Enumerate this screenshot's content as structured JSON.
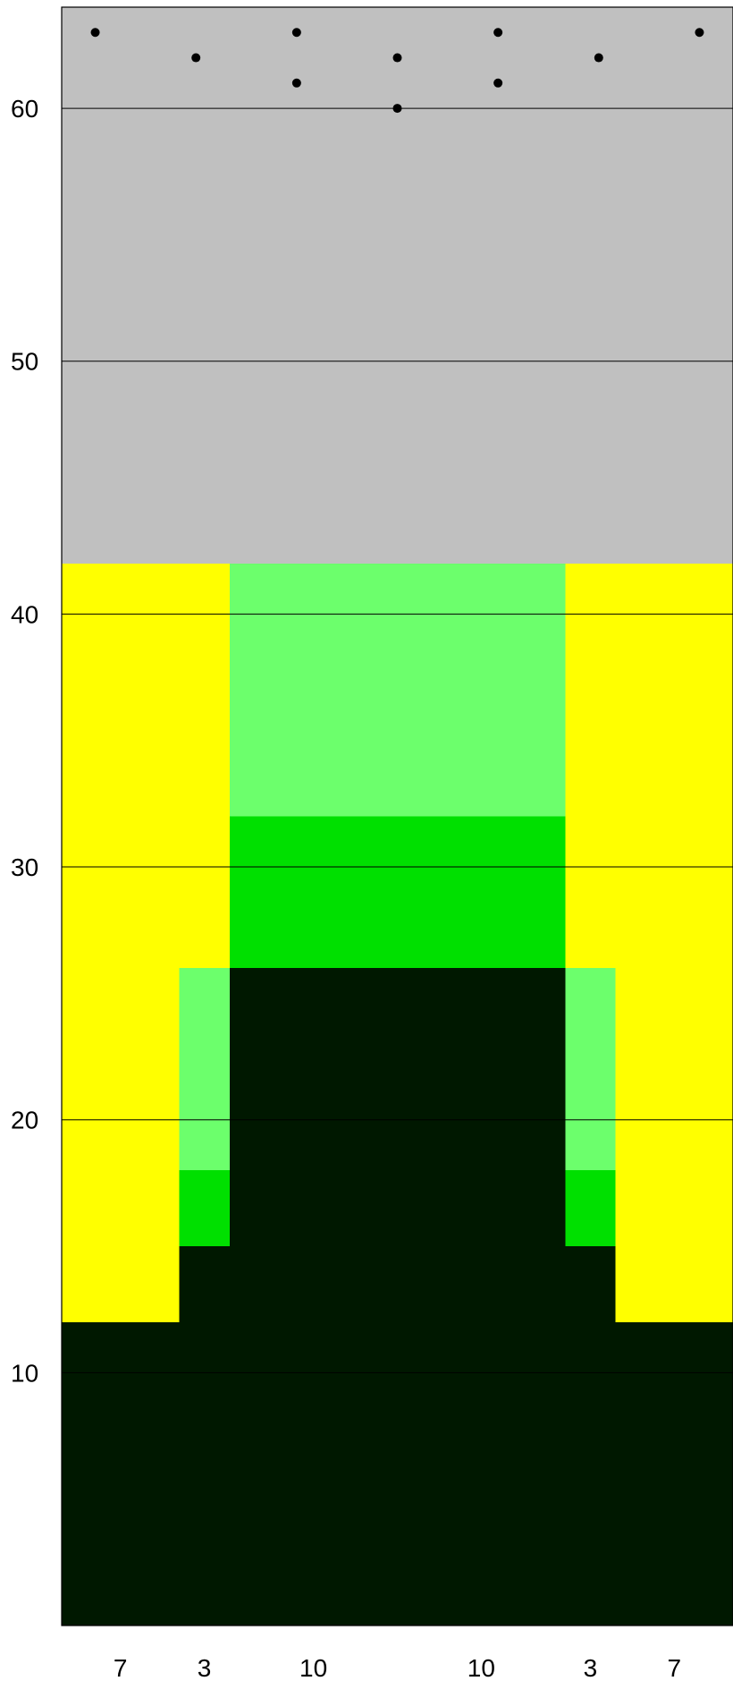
{
  "chart_data": {
    "type": "heatmap",
    "title": "",
    "xlabel": "",
    "ylabel": "",
    "ylim": [
      0,
      64
    ],
    "yticks": [
      10,
      20,
      30,
      40,
      50,
      60
    ],
    "grid": true,
    "column_widths": [
      7,
      3,
      10,
      10,
      3,
      7
    ],
    "xtick_labels": [
      "7",
      "3",
      "10",
      "10",
      "3",
      "7"
    ],
    "colors": {
      "air": "#c0c0c0",
      "sand": "#ffff00",
      "light_green": "#6cff6c",
      "green": "#00e000",
      "dark": "#001800",
      "grid": "#000000"
    },
    "regions": [
      {
        "x0": 0,
        "x1": 40,
        "y0": 42,
        "y1": 64,
        "fill": "air"
      },
      {
        "x0": 0,
        "x1": 40,
        "y0": 0,
        "y1": 12,
        "fill": "dark"
      },
      {
        "x0": 0,
        "x1": 7,
        "y0": 12,
        "y1": 42,
        "fill": "sand"
      },
      {
        "x0": 33,
        "x1": 40,
        "y0": 12,
        "y1": 42,
        "fill": "sand"
      },
      {
        "x0": 7,
        "x1": 10,
        "y0": 26,
        "y1": 42,
        "fill": "sand"
      },
      {
        "x0": 30,
        "x1": 33,
        "y0": 26,
        "y1": 42,
        "fill": "sand"
      },
      {
        "x0": 7,
        "x1": 10,
        "y0": 12,
        "y1": 15,
        "fill": "dark"
      },
      {
        "x0": 30,
        "x1": 33,
        "y0": 12,
        "y1": 15,
        "fill": "dark"
      },
      {
        "x0": 7,
        "x1": 10,
        "y0": 15,
        "y1": 18,
        "fill": "green"
      },
      {
        "x0": 30,
        "x1": 33,
        "y0": 15,
        "y1": 18,
        "fill": "green"
      },
      {
        "x0": 7,
        "x1": 10,
        "y0": 18,
        "y1": 26,
        "fill": "light_green"
      },
      {
        "x0": 30,
        "x1": 33,
        "y0": 18,
        "y1": 26,
        "fill": "light_green"
      },
      {
        "x0": 10,
        "x1": 30,
        "y0": 12,
        "y1": 26,
        "fill": "dark"
      },
      {
        "x0": 10,
        "x1": 30,
        "y0": 26,
        "y1": 32,
        "fill": "green"
      },
      {
        "x0": 10,
        "x1": 30,
        "y0": 32,
        "y1": 42,
        "fill": "light_green"
      }
    ],
    "points": [
      {
        "x": 2,
        "y": 63
      },
      {
        "x": 8,
        "y": 62
      },
      {
        "x": 14,
        "y": 63
      },
      {
        "x": 14,
        "y": 61
      },
      {
        "x": 20,
        "y": 62
      },
      {
        "x": 20,
        "y": 60
      },
      {
        "x": 26,
        "y": 63
      },
      {
        "x": 26,
        "y": 61
      },
      {
        "x": 32,
        "y": 62
      },
      {
        "x": 38,
        "y": 63
      }
    ]
  }
}
